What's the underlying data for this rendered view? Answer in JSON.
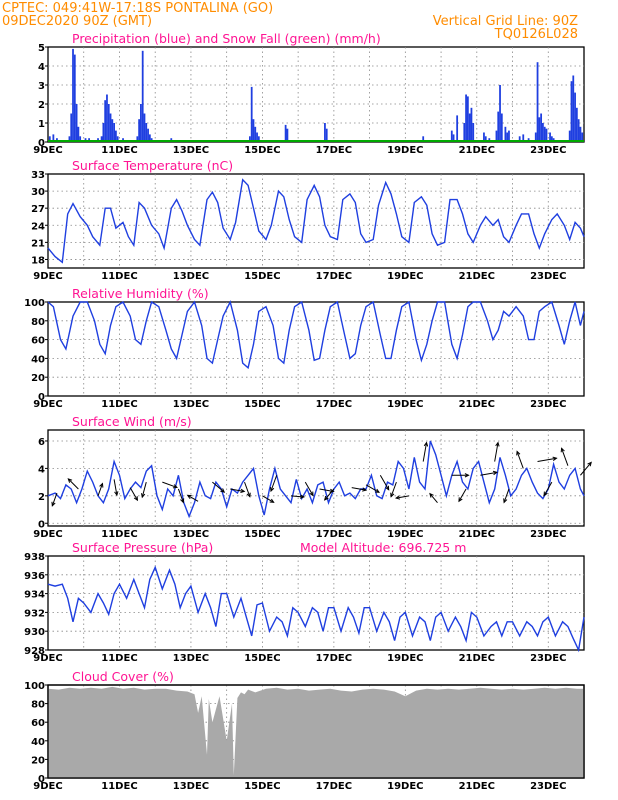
{
  "header": {
    "line1": "CPTEC:   049:41W-17:18S   PONTALINA (GO)",
    "line2": "09DEC2020 90Z (GMT)",
    "grid_note": "Vertical Grid Line: 90Z",
    "code": "TQ0126L028"
  },
  "colors": {
    "header": "#ff8c00",
    "title": "#ff1493",
    "line": "#1f3fe0",
    "precip": "#1f3fe0",
    "snow": "#00aa00",
    "cloud": "#a9a9a9",
    "arrow": "#000000"
  },
  "x_tick_labels": [
    "9DEC",
    "11DEC",
    "13DEC",
    "15DEC",
    "17DEC",
    "19DEC",
    "21DEC",
    "23DEC"
  ],
  "chart_data": [
    {
      "type": "bar",
      "title": "Precipitation (blue) and Snow Fall (green) (mm/h)",
      "ylim": [
        0,
        5
      ],
      "yticks": [
        0,
        1,
        2,
        3,
        4,
        5
      ],
      "x_range_days": [
        9,
        24
      ],
      "series": [
        {
          "name": "Precipitation",
          "x": [
            9.05,
            9.15,
            9.25,
            9.35,
            9.6,
            9.65,
            9.7,
            9.75,
            9.8,
            9.85,
            9.9,
            10.05,
            10.1,
            10.15,
            10.2,
            10.3,
            10.4,
            10.5,
            10.55,
            10.6,
            10.65,
            10.7,
            10.75,
            10.8,
            10.85,
            10.9,
            10.95,
            11.1,
            11.15,
            11.5,
            11.55,
            11.6,
            11.65,
            11.7,
            11.75,
            11.8,
            11.85,
            11.9,
            12.45,
            12.5,
            12.65,
            12.75,
            14.6,
            14.65,
            14.7,
            14.75,
            14.8,
            14.85,
            14.9,
            14.95,
            15.65,
            15.7,
            16.75,
            16.8,
            18.35,
            18.4,
            18.7,
            18.75,
            19.5,
            19.55,
            19.6,
            20.3,
            20.35,
            20.45,
            20.65,
            20.7,
            20.75,
            20.8,
            20.85,
            20.9,
            21.2,
            21.25,
            21.35,
            21.55,
            21.6,
            21.65,
            21.7,
            21.8,
            21.85,
            21.9,
            22.2,
            22.3,
            22.45,
            22.65,
            22.7,
            22.75,
            22.8,
            22.85,
            22.9,
            22.95,
            23.05,
            23.1,
            23.15,
            23.6,
            23.65,
            23.7,
            23.75,
            23.8,
            23.85,
            23.9,
            23.95
          ],
          "values": [
            0.3,
            0.4,
            0.2,
            0.1,
            0.3,
            1.5,
            4.9,
            4.6,
            2.0,
            0.8,
            0.3,
            0.2,
            0.1,
            0.2,
            0.1,
            0.1,
            0.2,
            0.3,
            1.0,
            2.2,
            2.5,
            2.0,
            1.5,
            1.2,
            1.0,
            0.6,
            0.3,
            0.2,
            0.1,
            0.3,
            1.2,
            2.0,
            4.8,
            1.5,
            1.0,
            0.7,
            0.4,
            0.2,
            0.2,
            0.1,
            0.1,
            0.1,
            0.1,
            0.3,
            2.9,
            1.2,
            0.8,
            0.5,
            0.3,
            0.1,
            0.9,
            0.7,
            1.0,
            0.7,
            0.1,
            0.1,
            0.1,
            0.1,
            0.3,
            0.1,
            0.1,
            0.6,
            0.4,
            1.4,
            1.0,
            2.5,
            2.4,
            1.5,
            1.8,
            1.0,
            0.5,
            0.3,
            0.2,
            0.6,
            1.6,
            3.0,
            1.5,
            0.8,
            0.5,
            0.6,
            0.3,
            0.4,
            0.2,
            0.5,
            4.2,
            1.3,
            1.5,
            1.0,
            0.8,
            0.7,
            0.5,
            0.3,
            0.2,
            0.6,
            3.2,
            3.5,
            2.6,
            1.8,
            1.2,
            0.8,
            0.5
          ]
        },
        {
          "name": "Snow Fall",
          "x": [
            9,
            24
          ],
          "values": [
            0,
            0
          ]
        }
      ]
    },
    {
      "type": "line",
      "title": "Surface Temperature (nC)",
      "ylim": [
        16.5,
        33
      ],
      "yticks": [
        18,
        21,
        24,
        27,
        30,
        33
      ],
      "x": [
        9.0,
        9.2,
        9.4,
        9.55,
        9.7,
        9.9,
        10.1,
        10.25,
        10.45,
        10.6,
        10.75,
        10.9,
        11.1,
        11.25,
        11.4,
        11.55,
        11.7,
        11.9,
        12.1,
        12.25,
        12.45,
        12.6,
        12.75,
        12.9,
        13.1,
        13.25,
        13.45,
        13.6,
        13.75,
        13.9,
        14.1,
        14.25,
        14.45,
        14.6,
        14.75,
        14.9,
        15.1,
        15.25,
        15.45,
        15.6,
        15.75,
        15.9,
        16.1,
        16.25,
        16.45,
        16.6,
        16.75,
        16.9,
        17.1,
        17.25,
        17.45,
        17.6,
        17.75,
        17.9,
        18.1,
        18.25,
        18.45,
        18.6,
        18.75,
        18.9,
        19.1,
        19.25,
        19.45,
        19.6,
        19.75,
        19.9,
        20.1,
        20.25,
        20.45,
        20.6,
        20.75,
        20.9,
        21.1,
        21.25,
        21.45,
        21.6,
        21.75,
        21.9,
        22.1,
        22.25,
        22.45,
        22.6,
        22.75,
        22.9,
        23.1,
        23.25,
        23.45,
        23.6,
        23.75,
        23.9,
        24.0
      ],
      "values": [
        20.0,
        18.5,
        17.5,
        26.0,
        27.8,
        25.5,
        24.0,
        22.0,
        20.5,
        27.0,
        27.0,
        23.5,
        24.5,
        22.0,
        20.5,
        28.0,
        27.0,
        24.0,
        22.5,
        20.0,
        27.0,
        28.5,
        26.5,
        24.0,
        21.5,
        20.5,
        28.5,
        29.8,
        28.0,
        23.5,
        21.5,
        24.5,
        32.0,
        31.0,
        27.0,
        23.0,
        21.5,
        24.0,
        30.0,
        29.0,
        25.0,
        22.0,
        21.0,
        28.5,
        31.0,
        29.0,
        24.0,
        22.0,
        21.5,
        28.5,
        29.5,
        28.0,
        22.5,
        21.0,
        21.5,
        27.5,
        31.5,
        29.5,
        26.0,
        22.0,
        21.0,
        28.0,
        29.0,
        27.5,
        22.5,
        20.5,
        21.0,
        28.5,
        28.5,
        26.0,
        22.5,
        21.0,
        24.0,
        25.5,
        24.0,
        25.0,
        22.0,
        21.0,
        24.0,
        26.0,
        26.0,
        22.5,
        20.0,
        22.5,
        25.0,
        26.0,
        24.0,
        21.5,
        24.5,
        23.5,
        22.0
      ]
    },
    {
      "type": "line",
      "title": "Relative Humidity (%)",
      "ylim": [
        0,
        100
      ],
      "yticks": [
        0,
        20,
        40,
        60,
        80,
        100
      ],
      "x": [
        9.0,
        9.15,
        9.35,
        9.5,
        9.7,
        9.9,
        10.1,
        10.3,
        10.45,
        10.6,
        10.75,
        10.9,
        11.1,
        11.3,
        11.45,
        11.6,
        11.75,
        11.9,
        12.1,
        12.3,
        12.45,
        12.6,
        12.75,
        12.9,
        13.1,
        13.3,
        13.45,
        13.6,
        13.75,
        13.9,
        14.1,
        14.3,
        14.45,
        14.6,
        14.75,
        14.9,
        15.1,
        15.3,
        15.45,
        15.6,
        15.75,
        15.9,
        16.1,
        16.3,
        16.45,
        16.6,
        16.75,
        16.9,
        17.1,
        17.3,
        17.45,
        17.6,
        17.75,
        17.9,
        18.1,
        18.3,
        18.45,
        18.6,
        18.75,
        18.9,
        19.1,
        19.3,
        19.45,
        19.6,
        19.75,
        19.9,
        20.1,
        20.3,
        20.45,
        20.6,
        20.75,
        20.9,
        21.1,
        21.3,
        21.45,
        21.6,
        21.75,
        21.9,
        22.1,
        22.3,
        22.45,
        22.6,
        22.75,
        22.9,
        23.1,
        23.3,
        23.45,
        23.6,
        23.75,
        23.9,
        24.0
      ],
      "values": [
        100,
        95,
        60,
        50,
        85,
        100,
        100,
        80,
        55,
        45,
        75,
        95,
        100,
        85,
        60,
        55,
        80,
        100,
        95,
        70,
        50,
        40,
        65,
        90,
        100,
        75,
        40,
        35,
        60,
        85,
        100,
        70,
        35,
        30,
        55,
        90,
        95,
        75,
        40,
        35,
        70,
        95,
        100,
        70,
        38,
        40,
        70,
        95,
        100,
        65,
        40,
        45,
        75,
        95,
        100,
        65,
        40,
        40,
        70,
        95,
        100,
        60,
        38,
        55,
        80,
        100,
        100,
        55,
        40,
        65,
        95,
        100,
        100,
        80,
        60,
        70,
        90,
        85,
        95,
        85,
        60,
        60,
        90,
        95,
        100,
        75,
        55,
        80,
        100,
        75,
        90
      ]
    },
    {
      "type": "line",
      "title": "Surface Wind (m/s)",
      "ylim": [
        -0.2,
        6.8
      ],
      "yticks": [
        0,
        2,
        4,
        6
      ],
      "x": [
        9.0,
        9.2,
        9.35,
        9.5,
        9.65,
        9.8,
        9.95,
        10.1,
        10.25,
        10.4,
        10.55,
        10.7,
        10.85,
        11.0,
        11.15,
        11.3,
        11.45,
        11.6,
        11.75,
        11.9,
        12.05,
        12.2,
        12.35,
        12.5,
        12.65,
        12.8,
        12.95,
        13.1,
        13.25,
        13.4,
        13.55,
        13.7,
        13.85,
        14.0,
        14.15,
        14.3,
        14.45,
        14.6,
        14.75,
        14.9,
        15.05,
        15.2,
        15.35,
        15.5,
        15.65,
        15.8,
        15.95,
        16.1,
        16.25,
        16.4,
        16.55,
        16.7,
        16.85,
        17.0,
        17.15,
        17.3,
        17.45,
        17.6,
        17.75,
        17.9,
        18.05,
        18.2,
        18.35,
        18.5,
        18.65,
        18.8,
        18.95,
        19.1,
        19.25,
        19.4,
        19.55,
        19.7,
        19.85,
        20.0,
        20.15,
        20.3,
        20.45,
        20.6,
        20.75,
        20.9,
        21.05,
        21.2,
        21.35,
        21.5,
        21.65,
        21.8,
        21.95,
        22.1,
        22.25,
        22.4,
        22.55,
        22.7,
        22.85,
        23.0,
        23.15,
        23.3,
        23.45,
        23.6,
        23.75,
        23.9,
        24.0
      ],
      "values": [
        2.0,
        2.2,
        1.8,
        2.8,
        2.5,
        1.5,
        2.5,
        3.8,
        3.0,
        2.0,
        1.5,
        2.5,
        4.5,
        3.5,
        1.8,
        2.5,
        3.0,
        2.6,
        3.8,
        4.2,
        2.0,
        1.0,
        2.5,
        2.0,
        3.5,
        1.5,
        0.5,
        1.5,
        3.0,
        2.0,
        1.8,
        3.0,
        2.5,
        1.2,
        2.5,
        2.2,
        3.0,
        3.5,
        4.0,
        2.0,
        0.6,
        2.5,
        4.0,
        2.5,
        2.0,
        1.5,
        3.2,
        1.8,
        2.5,
        1.5,
        2.8,
        3.0,
        1.5,
        2.5,
        3.0,
        2.0,
        2.2,
        1.8,
        2.5,
        2.5,
        3.5,
        2.0,
        1.8,
        3.0,
        2.8,
        4.5,
        4.0,
        2.5,
        4.8,
        3.0,
        2.5,
        6.0,
        5.0,
        3.5,
        2.0,
        3.5,
        4.5,
        3.0,
        2.5,
        4.0,
        4.5,
        3.0,
        1.5,
        2.5,
        4.8,
        3.5,
        2.0,
        2.5,
        3.5,
        4.0,
        3.0,
        2.2,
        1.8,
        2.5,
        4.3,
        3.0,
        2.5,
        3.5,
        4.0,
        2.5,
        2.0
      ]
    },
    {
      "type": "line",
      "title": "Surface Pressure (hPa)",
      "annotation": "Model Altitude: 696.725  m",
      "ylim": [
        928,
        938
      ],
      "yticks": [
        928,
        930,
        932,
        934,
        936,
        938
      ],
      "x": [
        9.0,
        9.2,
        9.4,
        9.55,
        9.7,
        9.85,
        10.0,
        10.2,
        10.4,
        10.55,
        10.7,
        10.85,
        11.0,
        11.2,
        11.4,
        11.55,
        11.7,
        11.85,
        12.0,
        12.2,
        12.4,
        12.55,
        12.7,
        12.85,
        13.0,
        13.2,
        13.4,
        13.55,
        13.7,
        13.85,
        14.0,
        14.2,
        14.4,
        14.55,
        14.7,
        14.85,
        15.0,
        15.2,
        15.4,
        15.55,
        15.7,
        15.85,
        16.0,
        16.2,
        16.4,
        16.55,
        16.7,
        16.85,
        17.0,
        17.2,
        17.4,
        17.55,
        17.7,
        17.85,
        18.0,
        18.2,
        18.4,
        18.55,
        18.7,
        18.85,
        19.0,
        19.2,
        19.4,
        19.55,
        19.7,
        19.85,
        20.0,
        20.2,
        20.4,
        20.55,
        20.7,
        20.85,
        21.0,
        21.2,
        21.4,
        21.55,
        21.7,
        21.85,
        22.0,
        22.2,
        22.4,
        22.55,
        22.7,
        22.85,
        23.0,
        23.2,
        23.4,
        23.55,
        23.7,
        23.85,
        24.0
      ],
      "values": [
        935.0,
        934.8,
        935.0,
        933.5,
        931.0,
        933.5,
        933.0,
        932.0,
        934.0,
        933.0,
        931.8,
        934.0,
        935.0,
        933.5,
        935.5,
        934.0,
        932.5,
        935.5,
        936.8,
        934.5,
        936.5,
        935.0,
        932.5,
        934.0,
        934.8,
        932.0,
        934.0,
        932.5,
        930.5,
        934.0,
        934.0,
        931.5,
        933.5,
        931.5,
        929.5,
        932.8,
        933.0,
        930.0,
        931.5,
        931.0,
        929.5,
        932.5,
        932.0,
        930.5,
        932.5,
        932.0,
        930.0,
        932.5,
        932.5,
        930.0,
        932.5,
        931.5,
        929.8,
        932.5,
        932.5,
        930.0,
        932.0,
        931.0,
        929.0,
        931.5,
        932.0,
        929.5,
        931.5,
        931.0,
        929.0,
        931.5,
        932.0,
        930.0,
        931.5,
        930.5,
        929.0,
        932.0,
        931.5,
        929.5,
        930.5,
        931.0,
        929.5,
        931.0,
        931.0,
        929.5,
        931.0,
        930.5,
        929.5,
        931.0,
        931.5,
        929.5,
        931.0,
        930.5,
        929.2,
        928.0,
        931.5
      ]
    },
    {
      "type": "area",
      "title": "Cloud Cover (%)",
      "ylim": [
        0,
        100
      ],
      "yticks": [
        0,
        20,
        40,
        60,
        80,
        100
      ],
      "x": [
        9.0,
        9.3,
        9.6,
        9.9,
        10.2,
        10.5,
        10.8,
        11.1,
        11.4,
        11.7,
        12.0,
        12.3,
        12.6,
        12.9,
        13.1,
        13.2,
        13.3,
        13.45,
        13.5,
        13.6,
        13.8,
        14.0,
        14.15,
        14.2,
        14.3,
        14.4,
        14.5,
        14.6,
        14.8,
        15.1,
        15.4,
        15.7,
        16.0,
        16.3,
        16.6,
        16.9,
        17.2,
        17.5,
        17.8,
        18.1,
        18.4,
        18.7,
        19.0,
        19.3,
        19.6,
        19.9,
        20.2,
        20.5,
        20.8,
        21.1,
        21.4,
        21.7,
        22.0,
        22.3,
        22.6,
        22.9,
        23.2,
        23.5,
        23.8,
        24.0
      ],
      "values": [
        96,
        95,
        97,
        96,
        97,
        96,
        98,
        96,
        97,
        95,
        96,
        96,
        94,
        93,
        90,
        70,
        88,
        25,
        85,
        60,
        88,
        40,
        80,
        3,
        86,
        92,
        90,
        95,
        92,
        96,
        97,
        95,
        96,
        94,
        95,
        96,
        94,
        93,
        95,
        96,
        95,
        93,
        88,
        94,
        96,
        95,
        96,
        95,
        96,
        97,
        96,
        95,
        96,
        95,
        96,
        97,
        96,
        97,
        96,
        96
      ]
    }
  ],
  "wind_arrows": {
    "x": [
      9.25,
      9.85,
      10.4,
      10.85,
      11.3,
      11.75,
      12.2,
      12.65,
      13.2,
      13.6,
      14.1,
      14.5,
      15.0,
      15.4,
      15.8,
      16.2,
      16.6,
      17.0,
      17.5,
      17.9,
      18.3,
      18.75,
      19.1,
      19.5,
      19.9,
      20.3,
      20.7,
      21.1,
      21.5,
      21.9,
      22.3,
      22.7,
      23.1,
      23.55,
      23.9
    ],
    "direction_deg": [
      200,
      315,
      20,
      170,
      150,
      195,
      110,
      160,
      300,
      130,
      100,
      160,
      120,
      200,
      95,
      150,
      100,
      220,
      100,
      120,
      150,
      200,
      260,
      10,
      320,
      90,
      210,
      80,
      10,
      200,
      340,
      80,
      210,
      340,
      40
    ],
    "speed": [
      2.2,
      2.5,
      2.0,
      3.2,
      2.6,
      3.0,
      3.0,
      2.5,
      1.6,
      3.0,
      2.5,
      3.0,
      2.0,
      3.5,
      2.0,
      3.0,
      2.5,
      2.5,
      2.6,
      2.8,
      3.5,
      3.0,
      2.0,
      4.5,
      1.5,
      3.5,
      2.5,
      3.5,
      4.5,
      2.5,
      4.0,
      4.5,
      3.0,
      4.2,
      3.5
    ]
  }
}
